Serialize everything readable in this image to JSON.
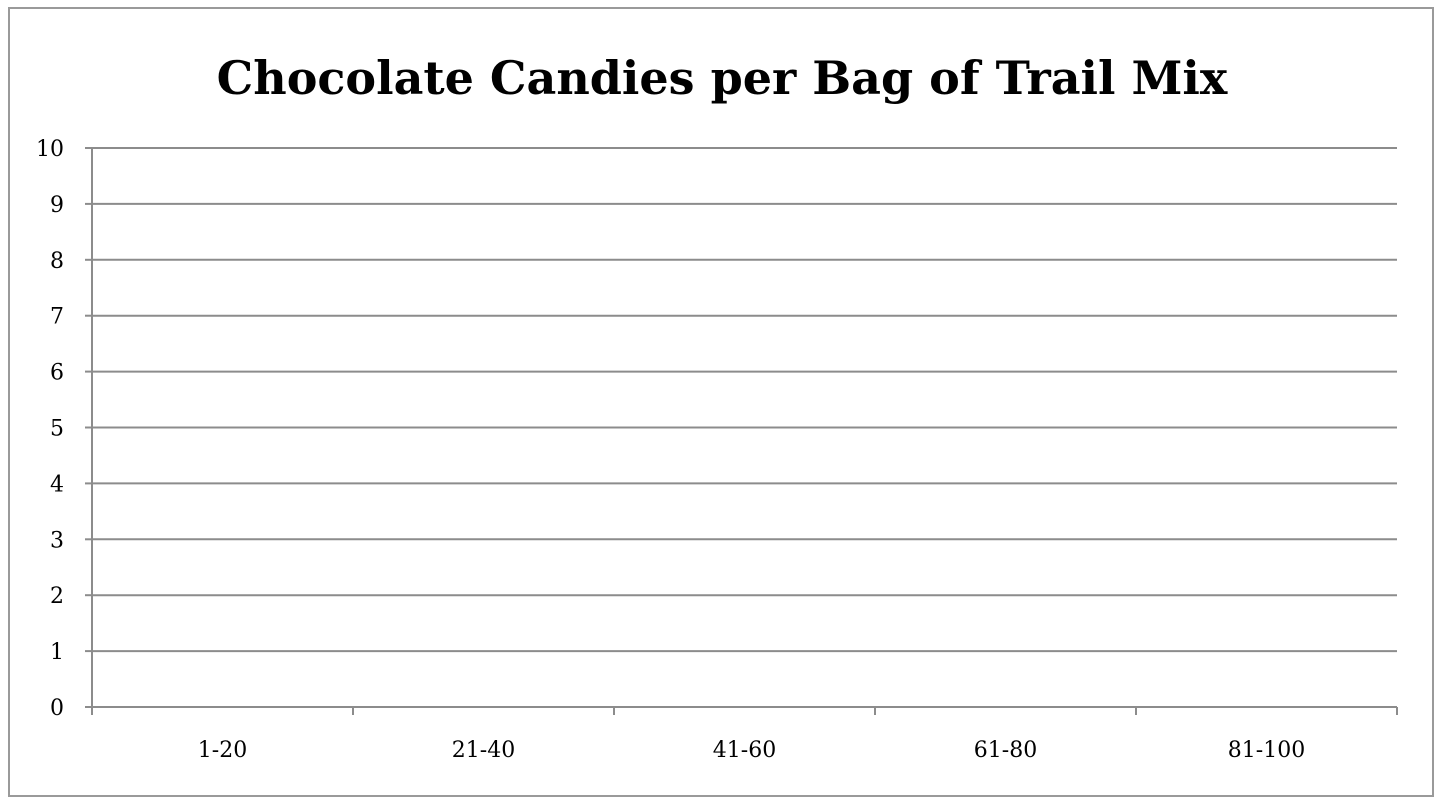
{
  "chart_data": {
    "type": "bar",
    "title": "Chocolate Candies per Bag of Trail Mix",
    "xlabel": "",
    "ylabel": "",
    "categories": [
      "1-20",
      "21-40",
      "41-60",
      "61-80",
      "81-100"
    ],
    "values": [
      null,
      null,
      null,
      null,
      null
    ],
    "ylim": [
      0,
      10
    ],
    "yticks": [
      "0",
      "1",
      "2",
      "3",
      "4",
      "5",
      "6",
      "7",
      "8",
      "9",
      "10"
    ],
    "grid": true,
    "legend": "none",
    "colors": {
      "gridline": "#8c8c8c",
      "axis": "#8c8c8c",
      "frame": "#9a9a9a",
      "text": "#000000"
    }
  }
}
